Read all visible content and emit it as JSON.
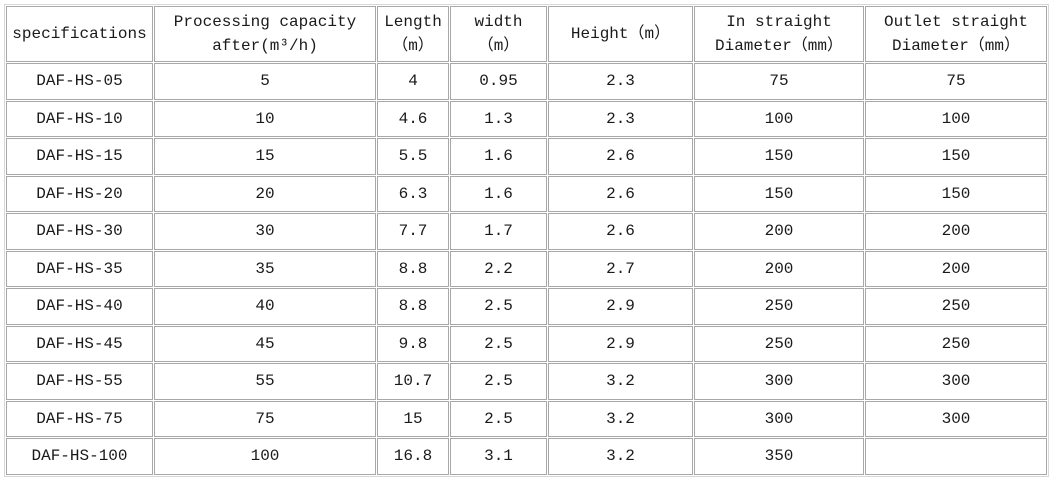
{
  "table": {
    "headers": [
      [
        "specifications"
      ],
      [
        "Processing capacity",
        "after(m³/h)"
      ],
      [
        "Length",
        "（m）"
      ],
      [
        "width",
        "（m）"
      ],
      [
        "Height（m）"
      ],
      [
        "In straight",
        "Diameter（mm）"
      ],
      [
        "Outlet straight",
        "Diameter（mm）"
      ]
    ],
    "rows": [
      [
        "DAF-HS-05",
        "5",
        "4",
        "0.95",
        "2.3",
        "75",
        "75"
      ],
      [
        "DAF-HS-10",
        "10",
        "4.6",
        "1.3",
        "2.3",
        "100",
        "100"
      ],
      [
        "DAF-HS-15",
        "15",
        "5.5",
        "1.6",
        "2.6",
        "150",
        "150"
      ],
      [
        "DAF-HS-20",
        "20",
        "6.3",
        "1.6",
        "2.6",
        "150",
        "150"
      ],
      [
        "DAF-HS-30",
        "30",
        "7.7",
        "1.7",
        "2.6",
        "200",
        "200"
      ],
      [
        "DAF-HS-35",
        "35",
        "8.8",
        "2.2",
        "2.7",
        "200",
        "200"
      ],
      [
        "DAF-HS-40",
        "40",
        "8.8",
        "2.5",
        "2.9",
        "250",
        "250"
      ],
      [
        "DAF-HS-45",
        "45",
        "9.8",
        "2.5",
        "2.9",
        "250",
        "250"
      ],
      [
        "DAF-HS-55",
        "55",
        "10.7",
        "2.5",
        "3.2",
        "300",
        "300"
      ],
      [
        "DAF-HS-75",
        "75",
        "15",
        "2.5",
        "3.2",
        "300",
        "300"
      ],
      [
        "DAF-HS-100",
        "100",
        "16.8",
        "3.1",
        "3.2",
        "350",
        ""
      ]
    ]
  }
}
